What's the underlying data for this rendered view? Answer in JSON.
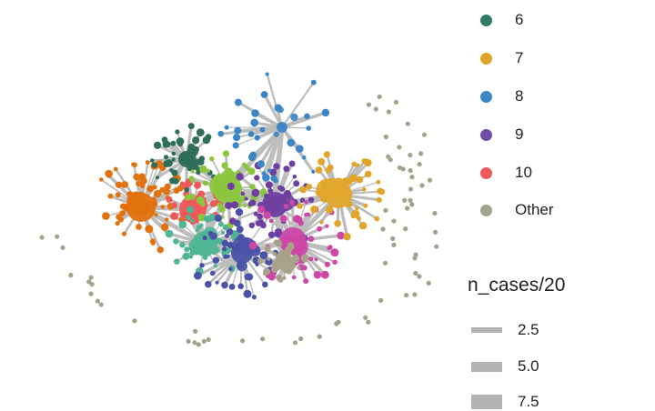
{
  "chart_data": {
    "type": "network",
    "title": "",
    "color_legend": {
      "entries": [
        {
          "label": "6",
          "color": "#2e7d64"
        },
        {
          "label": "7",
          "color": "#e0a52a"
        },
        {
          "label": "8",
          "color": "#3c86c6"
        },
        {
          "label": "9",
          "color": "#6f4ea6"
        },
        {
          "label": "10",
          "color": "#ee5a5a"
        },
        {
          "label": "Other",
          "color": "#a3a38d"
        }
      ]
    },
    "size_legend": {
      "title": "n_cases/20",
      "entries": [
        {
          "label": "2.5",
          "value": 2.5
        },
        {
          "label": "5.0",
          "value": 5.0
        },
        {
          "label": "7.5",
          "value": 7.5
        }
      ]
    },
    "clusters": [
      {
        "id": "orange",
        "color": "#e2720e",
        "count": 60
      },
      {
        "id": "red",
        "color": "#ee5a5a",
        "count": 30
      },
      {
        "id": "darkgreen",
        "color": "#2e6e5a",
        "count": 40
      },
      {
        "id": "lime",
        "color": "#8cc63f",
        "count": 45
      },
      {
        "id": "teal",
        "color": "#4fb595",
        "count": 40
      },
      {
        "id": "indigo",
        "color": "#4a52a8",
        "count": 45
      },
      {
        "id": "purple",
        "color": "#6f3fa0",
        "count": 45
      },
      {
        "id": "magenta",
        "color": "#cc47a8",
        "count": 45
      },
      {
        "id": "tan",
        "color": "#a9a28a",
        "count": 30
      },
      {
        "id": "gold",
        "color": "#e0a52a",
        "count": 40
      },
      {
        "id": "blue",
        "color": "#3c86c6",
        "count": 30
      },
      {
        "id": "other-ring",
        "color": "#a3a38d",
        "count": 70
      }
    ]
  }
}
